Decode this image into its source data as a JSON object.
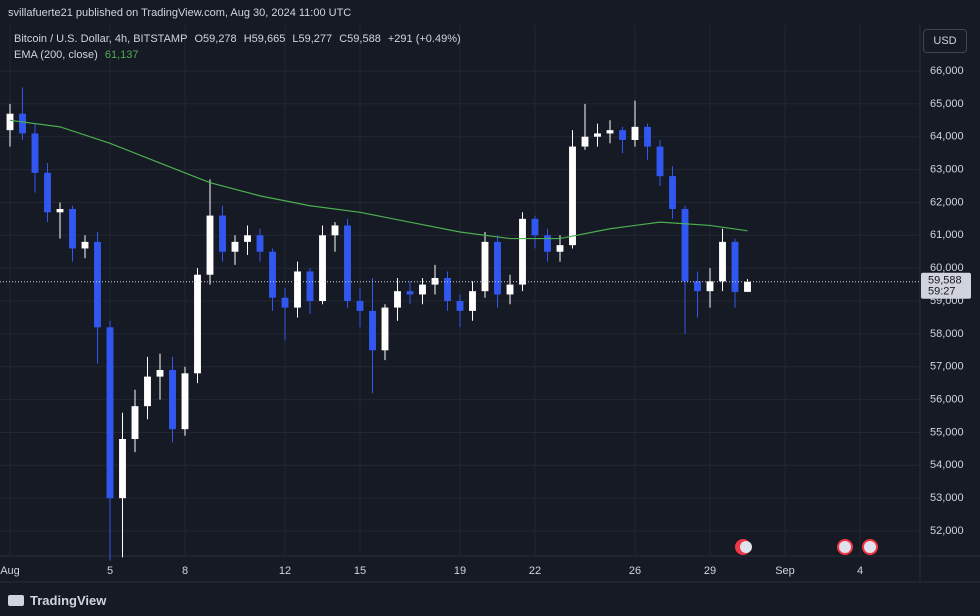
{
  "header": {
    "publisher": "svillafuerte21 published on TradingView.com, Aug 30, 2024 11:00 UTC"
  },
  "legend": {
    "symbol": "Bitcoin / U.S. Dollar, 4h, BITSTAMP",
    "open": "O59,278",
    "high": "H59,665",
    "low": "L59,277",
    "close": "C59,588",
    "change": "+291 (+0.49%)",
    "ema_name": "EMA (200, close)",
    "ema_value": "61,137"
  },
  "currency": "USD",
  "countdown": "59:27",
  "footer": "TradingView",
  "chart_data": {
    "type": "candlestick",
    "up_color": "#ffffff",
    "down_color": "#3157f0",
    "grid": true,
    "xlim": [
      0.6,
      37.4
    ],
    "ylim": [
      51240,
      67400
    ],
    "xticks": [
      {
        "value": 1,
        "label": "Aug"
      },
      5,
      8,
      12,
      15,
      19,
      22,
      26,
      29,
      {
        "value": 32,
        "label": "Sep"
      },
      {
        "value": 35,
        "label": "4"
      }
    ],
    "yticks": [
      {
        "value": 52000,
        "label": "52,000"
      },
      {
        "value": 53000,
        "label": "53,000"
      },
      {
        "value": 54000,
        "label": "54,000"
      },
      {
        "value": 55000,
        "label": "55,000"
      },
      {
        "value": 56000,
        "label": "56,000"
      },
      {
        "value": 57000,
        "label": "57,000"
      },
      {
        "value": 58000,
        "label": "58,000"
      },
      {
        "value": 59000,
        "label": "59,000"
      },
      {
        "value": 60000,
        "label": "60,000"
      },
      {
        "value": 61000,
        "label": "61,000"
      },
      {
        "value": 62000,
        "label": "62,000"
      },
      {
        "value": 63000,
        "label": "63,000"
      },
      {
        "value": 64000,
        "label": "64,000"
      },
      {
        "value": 65000,
        "label": "65,000"
      },
      {
        "value": 66000,
        "label": "66,000"
      }
    ],
    "last_price": {
      "value": 59588,
      "label": "59,588"
    },
    "x": [
      1,
      1.5,
      2,
      2.5,
      3,
      3.5,
      4,
      4.5,
      5,
      5.5,
      6,
      6.5,
      7,
      7.5,
      8,
      8.5,
      9,
      9.5,
      10,
      10.5,
      11,
      11.5,
      12,
      12.5,
      13,
      13.5,
      14,
      14.5,
      15,
      15.5,
      16,
      16.5,
      17,
      17.5,
      18,
      18.5,
      19,
      19.5,
      20,
      20.5,
      21,
      21.5,
      22,
      22.5,
      23,
      23.5,
      24,
      24.5,
      25,
      25.5,
      26,
      26.5,
      27,
      27.5,
      28,
      28.5,
      29,
      29.5,
      30,
      30.5
    ],
    "open": [
      64200,
      64700,
      64100,
      62900,
      61700,
      61800,
      60600,
      60800,
      58200,
      53000,
      54800,
      55800,
      56700,
      56900,
      55100,
      56800,
      59800,
      61600,
      60500,
      60800,
      61000,
      60500,
      59100,
      58800,
      59900,
      59000,
      61000,
      61300,
      59000,
      58700,
      57500,
      58800,
      59300,
      59200,
      59500,
      59700,
      59000,
      58700,
      59300,
      60800,
      59200,
      59500,
      61500,
      61000,
      60500,
      60700,
      63700,
      64000,
      64100,
      64200,
      63900,
      64300,
      63700,
      62800,
      61800,
      59600,
      59300,
      59600,
      60800,
      59278
    ],
    "high": [
      65000,
      65500,
      64400,
      63200,
      62000,
      61900,
      61000,
      61100,
      58400,
      55600,
      56300,
      57300,
      57400,
      57300,
      57000,
      60000,
      62700,
      61900,
      61000,
      61300,
      61200,
      60600,
      59400,
      60200,
      60000,
      61300,
      61400,
      61500,
      59400,
      59700,
      58900,
      59700,
      59600,
      59700,
      60100,
      59900,
      59200,
      59600,
      61100,
      61000,
      59800,
      61700,
      61600,
      61200,
      61000,
      64200,
      65000,
      64400,
      64500,
      64300,
      65100,
      64400,
      63900,
      63100,
      61900,
      59900,
      60000,
      61200,
      60900,
      59665
    ],
    "low": [
      63700,
      63900,
      62300,
      61400,
      60900,
      60200,
      60300,
      57100,
      51100,
      51200,
      54400,
      55400,
      56000,
      54700,
      54900,
      56500,
      59500,
      60200,
      60100,
      60400,
      60200,
      58700,
      57800,
      58500,
      58600,
      58900,
      60500,
      58800,
      58200,
      56200,
      57200,
      58400,
      58900,
      58900,
      59200,
      58700,
      58200,
      58400,
      59100,
      58800,
      58900,
      59300,
      60600,
      60200,
      60200,
      60600,
      63600,
      63700,
      63800,
      63500,
      63700,
      63300,
      62500,
      61500,
      58000,
      58500,
      58800,
      59300,
      58800,
      59277
    ],
    "close": [
      64700,
      64100,
      62900,
      61700,
      61800,
      60600,
      60800,
      58200,
      53000,
      54800,
      55800,
      56700,
      56900,
      55100,
      56800,
      59800,
      61600,
      60500,
      60800,
      61000,
      60500,
      59100,
      58800,
      59900,
      59000,
      61000,
      61300,
      59000,
      58700,
      57500,
      58800,
      59300,
      59200,
      59500,
      59700,
      59000,
      58700,
      59300,
      60800,
      59200,
      59500,
      61500,
      61000,
      60500,
      60700,
      63700,
      64000,
      64100,
      64200,
      63900,
      64300,
      63700,
      62800,
      61800,
      59600,
      59300,
      59600,
      60800,
      59278,
      59588
    ],
    "ema": {
      "color": "#4caf50",
      "x": [
        1,
        3,
        5,
        7,
        9,
        11,
        13,
        15,
        17,
        19,
        21,
        23,
        25,
        27,
        29,
        30.5
      ],
      "values": [
        64500,
        64300,
        63800,
        63200,
        62600,
        62200,
        61900,
        61700,
        61400,
        61100,
        60900,
        60900,
        61200,
        61400,
        61300,
        61137
      ]
    }
  }
}
